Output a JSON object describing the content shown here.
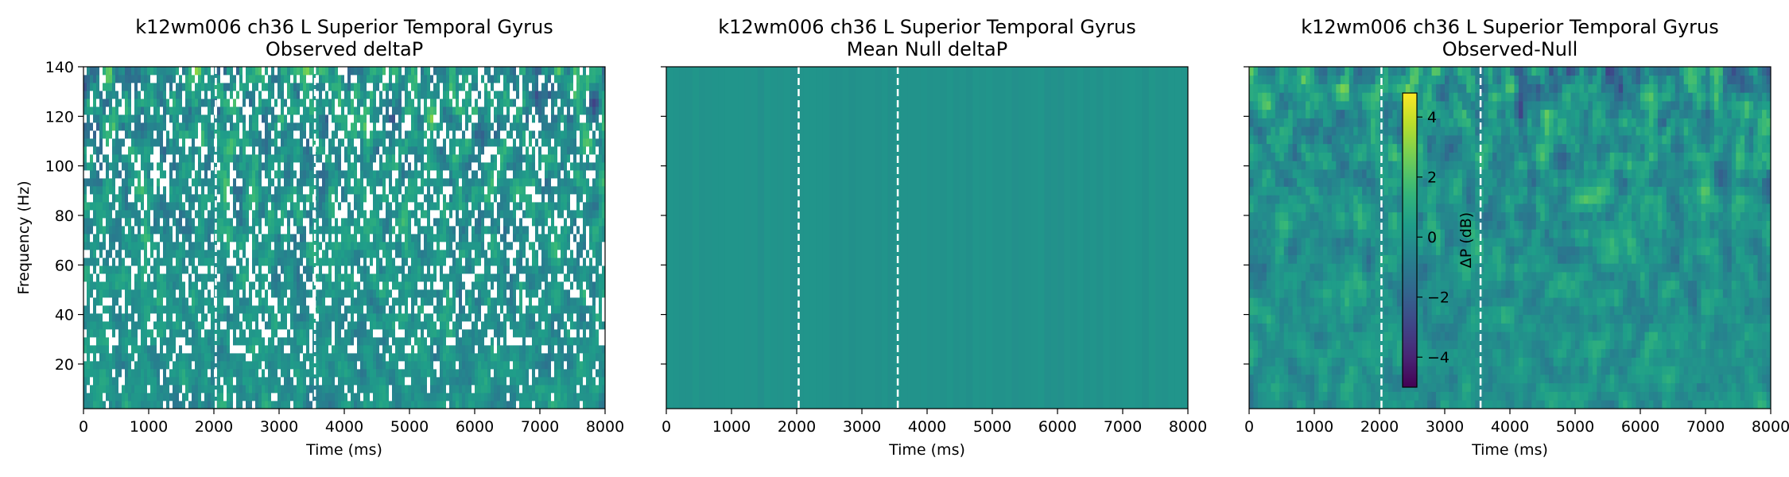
{
  "chart_data": [
    {
      "type": "heatmap",
      "title_line1": "k12wm006 ch36 L Superior Temporal Gyrus",
      "title_line2": "Observed deltaP",
      "xlabel": "Time (ms)",
      "ylabel": "Frequency (Hz)",
      "xlim": [
        0,
        8000
      ],
      "ylim": [
        2,
        140
      ],
      "xticks": [
        "0",
        "1000",
        "2000",
        "3000",
        "4000",
        "5000",
        "6000",
        "7000",
        "8000"
      ],
      "yticks": [
        "20",
        "40",
        "60",
        "80",
        "100",
        "120",
        "140"
      ],
      "event_lines_ms": [
        2030,
        3550
      ],
      "colormap": "viridis",
      "masked_nonsignificant": true,
      "mask_color": "#ffffff"
    },
    {
      "type": "heatmap",
      "title_line1": "k12wm006 ch36 L Superior Temporal Gyrus",
      "title_line2": "Mean Null deltaP",
      "xlabel": "Time (ms)",
      "ylabel": "",
      "xlim": [
        0,
        8000
      ],
      "ylim": [
        2,
        140
      ],
      "xticks": [
        "0",
        "1000",
        "2000",
        "3000",
        "4000",
        "5000",
        "6000",
        "7000",
        "8000"
      ],
      "yticks": [],
      "event_lines_ms": [
        2030,
        3550
      ],
      "colormap": "viridis",
      "uniform_value_dB": 0
    },
    {
      "type": "heatmap",
      "title_line1": "k12wm006 ch36 L Superior Temporal Gyrus",
      "title_line2": "Observed-Null",
      "xlabel": "Time (ms)",
      "ylabel": "",
      "xlim": [
        0,
        8000
      ],
      "ylim": [
        2,
        140
      ],
      "xticks": [
        "0",
        "1000",
        "2000",
        "3000",
        "4000",
        "5000",
        "6000",
        "7000",
        "8000"
      ],
      "yticks": [],
      "event_lines_ms": [
        2030,
        3550
      ],
      "colormap": "viridis",
      "colorbar": {
        "label": "ΔP (dB)",
        "range": [
          -5,
          4.8
        ],
        "ticks": [
          "−4",
          "−2",
          "0",
          "2",
          "4"
        ],
        "tick_values": [
          -4,
          -2,
          0,
          2,
          4
        ]
      }
    }
  ]
}
